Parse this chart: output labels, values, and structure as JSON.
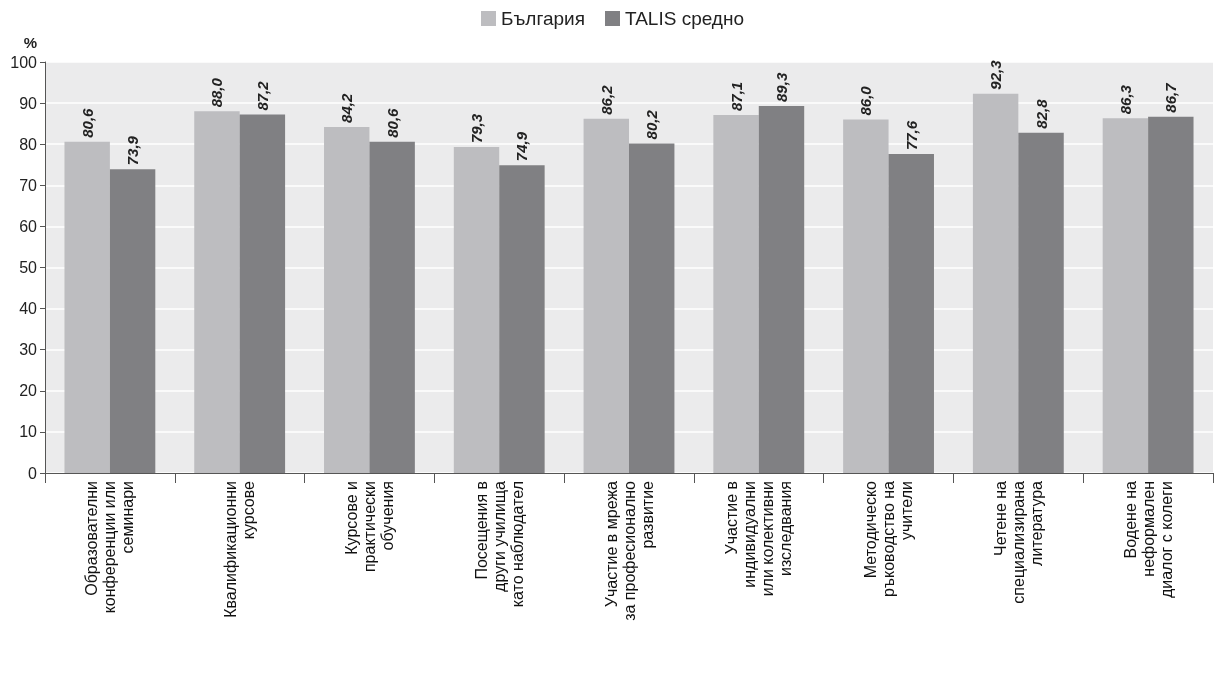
{
  "chart_data": {
    "type": "bar",
    "categories": [
      "Образователни\nконференции или\nсеминари",
      "Квалификационни\nкурсове",
      "Курсове и\nпрактически\nобучения",
      "Посещения в\nдруги училища\nкато наблюдател",
      "Участие в мрежа\nза професионално\nразвитие",
      "Участие в\nиндивидуални\nили колективни\nизследвания",
      "Методическо\nръководство на\nучители",
      "Четене на\nспециализирана\nлитература",
      "Водене на\nнеформален\nдиалог с колеги"
    ],
    "series": [
      {
        "name": "България",
        "color": "#bdbdc0",
        "values": [
          80.6,
          88.0,
          84.2,
          79.3,
          86.2,
          87.1,
          86.0,
          92.3,
          86.3
        ],
        "value_labels": [
          "80,6",
          "88,0",
          "84,2",
          "79,3",
          "86,2",
          "87,1",
          "86,0",
          "92,3",
          "86,3"
        ]
      },
      {
        "name": "TALIS средно",
        "color": "#808083",
        "values": [
          73.9,
          87.2,
          80.6,
          74.9,
          80.2,
          89.3,
          77.6,
          82.8,
          86.7
        ],
        "value_labels": [
          "73,9",
          "87,2",
          "80,6",
          "74,9",
          "80,2",
          "89,3",
          "77,6",
          "82,8",
          "86,7"
        ]
      }
    ],
    "ylabel": "%",
    "ylim": [
      0,
      100
    ],
    "yticks": [
      0,
      10,
      20,
      30,
      40,
      50,
      60,
      70,
      80,
      90,
      100
    ],
    "grid": "y",
    "legend": "top"
  }
}
